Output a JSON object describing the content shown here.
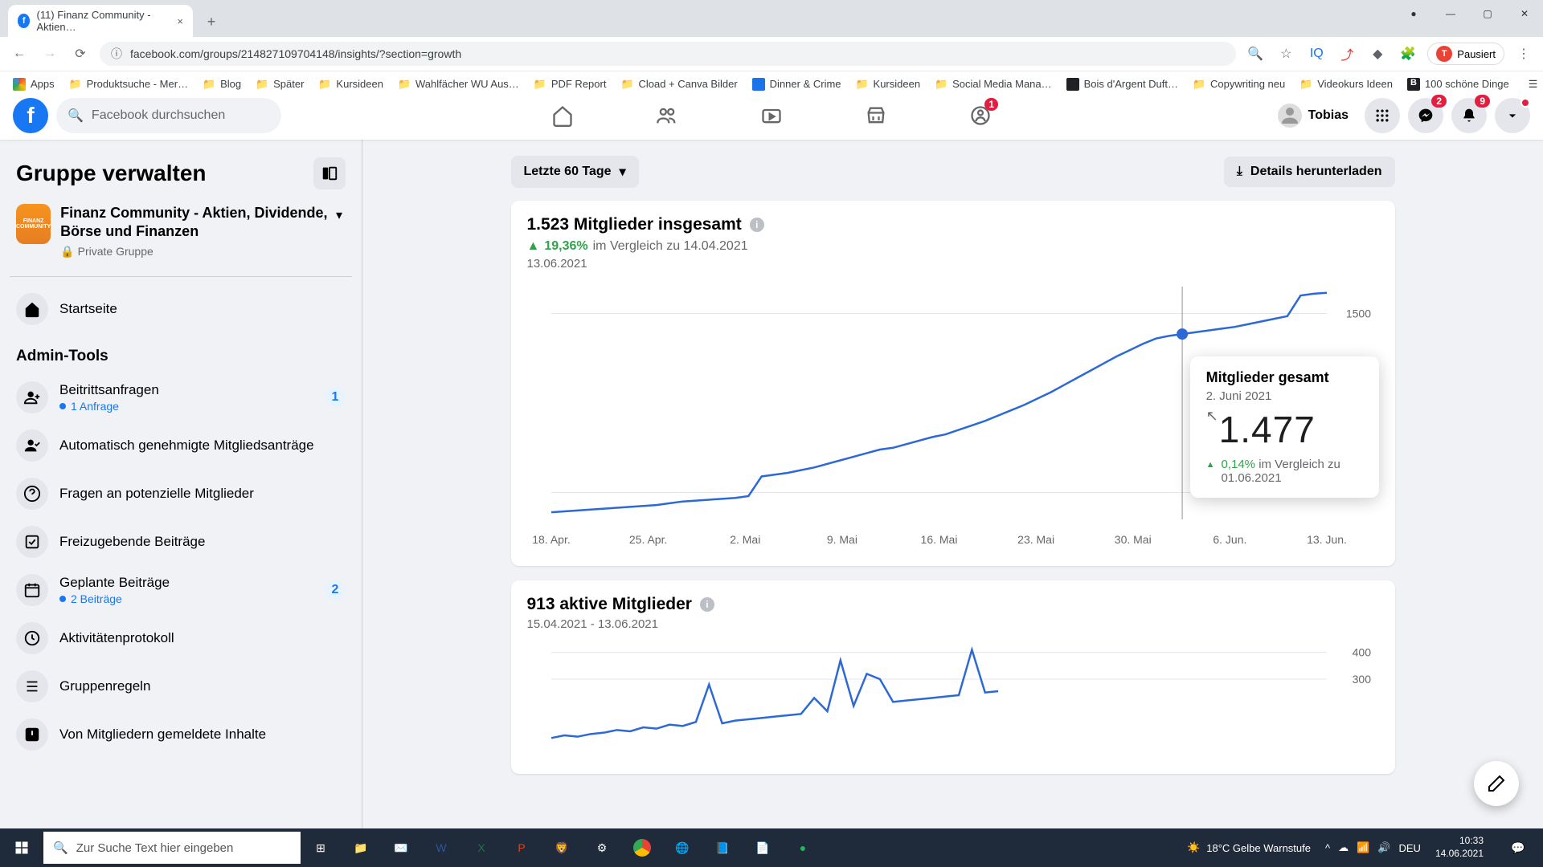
{
  "browser": {
    "tab_title": "(11) Finanz Community - Aktien…",
    "url": "facebook.com/groups/214827109704148/insights/?section=growth",
    "pause_label": "Pausiert"
  },
  "bookmarks": [
    {
      "label": "Apps",
      "color": "#5f6368"
    },
    {
      "label": "Produktsuche - Mer…",
      "color": "#f5b400"
    },
    {
      "label": "Blog",
      "color": "#f5b400"
    },
    {
      "label": "Später",
      "color": "#f5b400"
    },
    {
      "label": "Kursideen",
      "color": "#f5b400"
    },
    {
      "label": "Wahlfächer WU Aus…",
      "color": "#f5b400"
    },
    {
      "label": "PDF Report",
      "color": "#f5b400"
    },
    {
      "label": "Cload + Canva Bilder",
      "color": "#f5b400"
    },
    {
      "label": "Dinner & Crime",
      "color": "#1a73e8"
    },
    {
      "label": "Kursideen",
      "color": "#f5b400"
    },
    {
      "label": "Social Media Mana…",
      "color": "#f5b400"
    },
    {
      "label": "Bois d'Argent Duft…",
      "color": "#202124"
    },
    {
      "label": "Copywriting neu",
      "color": "#f5b400"
    },
    {
      "label": "Videokurs Ideen",
      "color": "#f5b400"
    },
    {
      "label": "100 schöne Dinge",
      "color": "#202124"
    }
  ],
  "bookmarks_reading_list": "Leseliste",
  "fb": {
    "search_placeholder": "Facebook durchsuchen",
    "profile_name": "Tobias",
    "nav_groups_badge": "1",
    "messenger_badge": "2",
    "notif_badge": "9"
  },
  "sidebar": {
    "title": "Gruppe verwalten",
    "group_name": "Finanz Community - Aktien, Dividende, Börse und Finanzen",
    "group_type": "Private Gruppe",
    "group_badge": "FINANZ\nCOMMUNITY",
    "home": "Startseite",
    "section_admin": "Admin-Tools",
    "items": [
      {
        "label": "Beitrittsanfragen",
        "sub": "1 Anfrage",
        "badge": "1"
      },
      {
        "label": "Automatisch genehmigte Mitgliedsanträge"
      },
      {
        "label": "Fragen an potenzielle Mitglieder"
      },
      {
        "label": "Freizugebende Beiträge"
      },
      {
        "label": "Geplante Beiträge",
        "sub": "2 Beiträge",
        "badge": "2"
      },
      {
        "label": "Aktivitätenprotokoll"
      },
      {
        "label": "Gruppenregeln"
      },
      {
        "label": "Von Mitgliedern gemeldete Inhalte"
      }
    ]
  },
  "toolbar": {
    "range_label": "Letzte 60 Tage",
    "download_label": "Details herunterladen"
  },
  "chart1": {
    "title": "1.523 Mitglieder insgesamt",
    "growth_pct": "19,36%",
    "growth_cmp": "im Vergleich zu 14.04.2021",
    "asof_date": "13.06.2021",
    "type": "line",
    "line_color": "#2d69d6",
    "background_color": "#ffffff",
    "grid_color": "#e4e6eb",
    "ylim": [
      1270,
      1530
    ],
    "yticks": [
      {
        "v": 1300,
        "label": "1300"
      },
      {
        "v": 1500,
        "label": "1500"
      }
    ],
    "xticks": [
      "18. Apr.",
      "25. Apr.",
      "2. Mai",
      "9. Mai",
      "16. Mai",
      "23. Mai",
      "30. Mai",
      "6. Jun.",
      "13. Jun."
    ],
    "values": [
      1278,
      1279,
      1280,
      1281,
      1282,
      1283,
      1284,
      1285,
      1286,
      1288,
      1290,
      1291,
      1292,
      1293,
      1294,
      1296,
      1318,
      1320,
      1322,
      1325,
      1328,
      1332,
      1336,
      1340,
      1344,
      1348,
      1350,
      1354,
      1358,
      1362,
      1365,
      1370,
      1375,
      1380,
      1386,
      1392,
      1398,
      1405,
      1412,
      1420,
      1428,
      1436,
      1444,
      1452,
      1459,
      1466,
      1472,
      1475,
      1477,
      1479,
      1481,
      1483,
      1485,
      1488,
      1491,
      1494,
      1497,
      1520,
      1522,
      1523
    ],
    "hover_index": 48,
    "tooltip": {
      "title": "Mitglieder gesamt",
      "date": "2. Juni 2021",
      "value": "1.477",
      "change_pct": "0,14%",
      "change_cmp": "im Vergleich zu 01.06.2021"
    }
  },
  "chart2": {
    "title": "913 aktive Mitglieder",
    "date_range": "15.04.2021 - 13.06.2021",
    "type": "line",
    "line_color": "#2d69d6",
    "ylim": [
      0,
      450
    ],
    "yticks": [
      {
        "v": 300,
        "label": "300"
      },
      {
        "v": 400,
        "label": "400"
      }
    ],
    "values": [
      80,
      90,
      85,
      95,
      100,
      110,
      105,
      120,
      115,
      130,
      125,
      140,
      280,
      135,
      145,
      150,
      155,
      160,
      165,
      170,
      230,
      180,
      370,
      200,
      320,
      300,
      215,
      220,
      225,
      230,
      235,
      240,
      410,
      250,
      255
    ]
  },
  "taskbar": {
    "search_placeholder": "Zur Suche Text hier eingeben",
    "weather": "18°C  Gelbe Warnstufe",
    "lang": "DEU",
    "time": "10:33",
    "date": "14.06.2021"
  }
}
